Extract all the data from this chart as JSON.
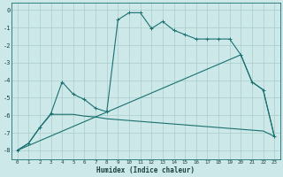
{
  "xlabel": "Humidex (Indice chaleur)",
  "background_color": "#cce8e8",
  "grid_color": "#aacccc",
  "line_color": "#1a7070",
  "xlim": [
    -0.5,
    23.5
  ],
  "ylim": [
    -8.5,
    0.4
  ],
  "xticks": [
    0,
    1,
    2,
    3,
    4,
    5,
    6,
    7,
    8,
    9,
    10,
    11,
    12,
    13,
    14,
    15,
    16,
    17,
    18,
    19,
    20,
    21,
    22,
    23
  ],
  "yticks": [
    0,
    -1,
    -2,
    -3,
    -4,
    -5,
    -6,
    -7,
    -8
  ],
  "line_jagged_x": [
    0,
    1,
    2,
    3,
    4,
    5,
    6,
    7,
    8,
    9,
    10,
    11,
    12,
    13,
    14,
    15,
    16,
    17,
    18,
    19,
    20,
    21,
    22,
    23
  ],
  "line_jagged_y": [
    -8.0,
    -7.6,
    -6.7,
    -5.9,
    -4.1,
    -4.8,
    -5.1,
    -5.6,
    -5.8,
    -0.55,
    -0.15,
    -0.15,
    -1.05,
    -0.65,
    -1.15,
    -1.4,
    -1.65,
    -1.65,
    -1.65,
    -1.65,
    -2.55,
    -4.1,
    -4.55,
    -7.2
  ],
  "line_straight1_x": [
    0,
    20,
    21,
    22,
    23
  ],
  "line_straight1_y": [
    -8.0,
    -2.55,
    -4.1,
    -4.55,
    -7.2
  ],
  "line_flat_x": [
    0,
    1,
    2,
    3,
    4,
    5,
    6,
    7,
    8,
    9,
    10,
    11,
    12,
    13,
    14,
    15,
    16,
    17,
    18,
    19,
    20,
    21,
    22,
    23
  ],
  "line_flat_y": [
    -8.0,
    -7.6,
    -6.7,
    -5.95,
    -5.95,
    -5.95,
    -6.05,
    -6.1,
    -6.2,
    -6.25,
    -6.3,
    -6.35,
    -6.4,
    -6.45,
    -6.5,
    -6.55,
    -6.6,
    -6.65,
    -6.7,
    -6.75,
    -6.8,
    -6.85,
    -6.9,
    -7.2
  ]
}
